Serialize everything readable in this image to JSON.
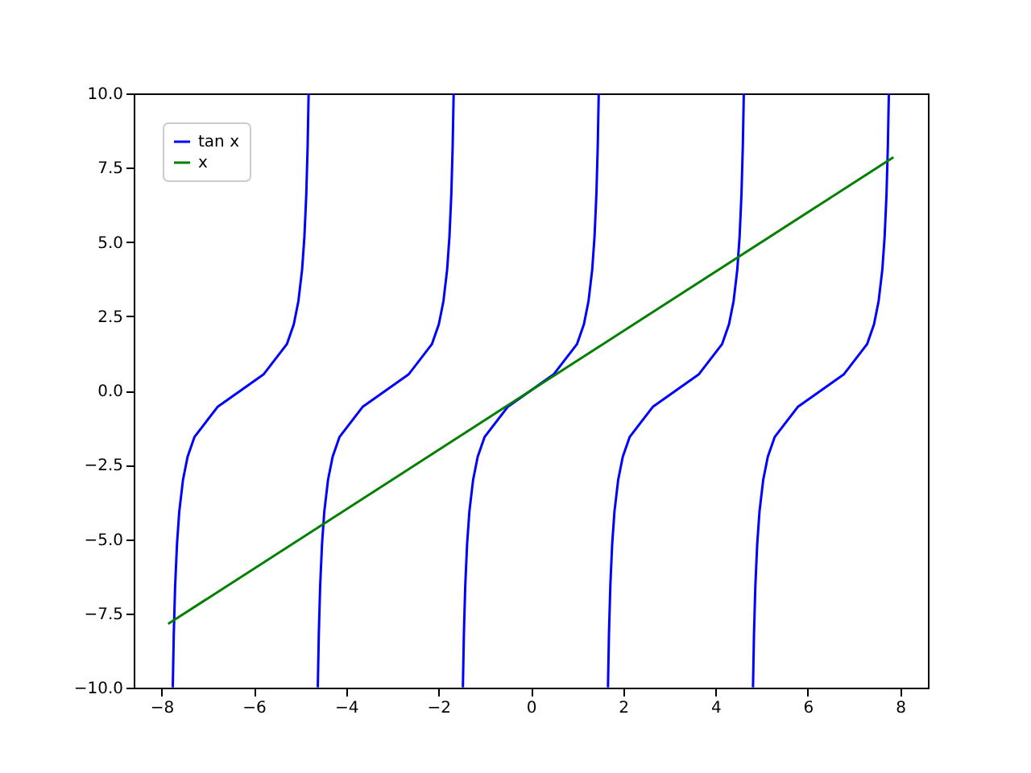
{
  "chart_data": {
    "type": "line",
    "xlim": [
      -8.6,
      8.6
    ],
    "ylim": [
      -10,
      10
    ],
    "xticks": [
      {
        "value": -8,
        "label": "−8"
      },
      {
        "value": -6,
        "label": "−6"
      },
      {
        "value": -4,
        "label": "−4"
      },
      {
        "value": -2,
        "label": "−2"
      },
      0,
      2,
      4,
      6,
      8
    ],
    "yticks": [
      {
        "value": -10,
        "label": "−10.0"
      },
      {
        "value": -7.5,
        "label": "−7.5"
      },
      {
        "value": -5,
        "label": "−5.0"
      },
      {
        "value": -2.5,
        "label": "−2.5"
      },
      {
        "value": 0,
        "label": "0.0"
      },
      2.5,
      {
        "value": 5,
        "label": "5.0"
      },
      7.5,
      {
        "value": 10,
        "label": "10.0"
      }
    ],
    "grid": false,
    "legend": "top left",
    "series": [
      {
        "name": "tan x",
        "color": "#0000ff",
        "x": [
          -7.754,
          -7.733,
          -7.703,
          -7.663,
          -7.613,
          -7.533,
          -7.433,
          -7.283,
          -6.783,
          -6.283,
          -5.783,
          -5.283,
          -5.133,
          -5.033,
          -4.953,
          -4.903,
          -4.863,
          -4.833,
          -4.812,
          -4.712,
          -4.613,
          -4.592,
          -4.562,
          -4.522,
          -4.472,
          -4.392,
          -4.292,
          -4.142,
          -3.642,
          -3.142,
          -2.642,
          -2.142,
          -1.992,
          -1.892,
          -1.812,
          -1.762,
          -1.722,
          -1.692,
          -1.671,
          -1.571,
          -1.471,
          -1.45,
          -1.42,
          -1.38,
          -1.33,
          -1.25,
          -1.15,
          -1.0,
          -0.5,
          0,
          0.5,
          1.0,
          1.15,
          1.25,
          1.33,
          1.38,
          1.42,
          1.45,
          1.471,
          1.571,
          1.671,
          1.692,
          1.722,
          1.762,
          1.812,
          1.892,
          1.992,
          2.142,
          2.642,
          3.142,
          3.642,
          4.142,
          4.292,
          4.392,
          4.472,
          4.522,
          4.562,
          4.592,
          4.613,
          4.712,
          4.812,
          4.833,
          4.863,
          4.903,
          4.953,
          5.033,
          5.133,
          5.283,
          5.783,
          6.283,
          6.783,
          7.283,
          7.433,
          7.533,
          7.613,
          7.663,
          7.703,
          7.733,
          7.754
        ],
        "values": [
          -9.99,
          -8.24,
          -6.58,
          -5.18,
          -4.07,
          -3.01,
          -2.23,
          -1.56,
          -0.55,
          0,
          0.55,
          1.56,
          2.23,
          3.01,
          4.07,
          5.18,
          6.58,
          8.24,
          9.99,
          null,
          -9.99,
          -8.24,
          -6.58,
          -5.18,
          -4.07,
          -3.01,
          -2.23,
          -1.56,
          -0.55,
          0,
          0.55,
          1.56,
          2.23,
          3.01,
          4.07,
          5.18,
          6.58,
          8.24,
          9.99,
          null,
          -9.99,
          -8.24,
          -6.58,
          -5.18,
          -4.07,
          -3.01,
          -2.23,
          -1.56,
          -0.55,
          0,
          0.55,
          1.56,
          2.23,
          3.01,
          4.07,
          5.18,
          6.58,
          8.24,
          9.99,
          null,
          -9.99,
          -8.24,
          -6.58,
          -5.18,
          -4.07,
          -3.01,
          -2.23,
          -1.56,
          -0.55,
          0,
          0.55,
          1.56,
          2.23,
          3.01,
          4.07,
          5.18,
          6.58,
          8.24,
          9.99,
          null,
          -9.99,
          -8.24,
          -6.58,
          -5.18,
          -4.07,
          -3.01,
          -2.23,
          -1.56,
          -0.55,
          0,
          0.55,
          1.56,
          2.23,
          3.01,
          4.07,
          5.18,
          6.58,
          8.24,
          9.99
        ]
      },
      {
        "name": "x",
        "color": "#008000",
        "x": [
          -7.854,
          7.854
        ],
        "values": [
          -7.854,
          7.854
        ]
      }
    ]
  }
}
